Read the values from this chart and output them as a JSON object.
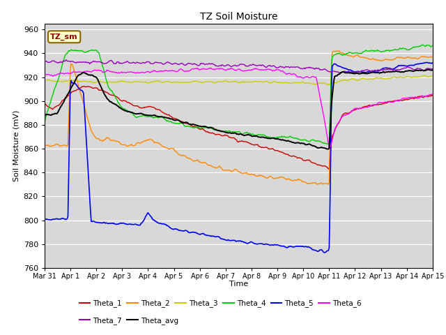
{
  "title": "TZ Soil Moisture",
  "xlabel": "Time",
  "ylabel": "Soil Moisture (mV)",
  "ylim": [
    760,
    965
  ],
  "yticks": [
    760,
    780,
    800,
    820,
    840,
    860,
    880,
    900,
    920,
    940,
    960
  ],
  "bg_color": "#d8d8d8",
  "label_box": "TZ_sm",
  "series_colors": {
    "Theta_1": "#cc0000",
    "Theta_2": "#ff8800",
    "Theta_3": "#cccc00",
    "Theta_4": "#00cc00",
    "Theta_5": "#0000ee",
    "Theta_6": "#ff00ff",
    "Theta_7": "#9900bb",
    "Theta_avg": "#000000"
  },
  "x_tick_labels": [
    "Mar 31",
    "Apr 1",
    "Apr 2",
    "Apr 3",
    "Apr 4",
    "Apr 5",
    "Apr 6",
    "Apr 7",
    "Apr 8",
    "Apr 9",
    "Apr 10",
    "Apr 11",
    "Apr 12",
    "Apr 13",
    "Apr 14",
    "Apr 15"
  ],
  "legend_row1": [
    "Theta_1",
    "Theta_2",
    "Theta_3",
    "Theta_4",
    "Theta_5",
    "Theta_6"
  ],
  "legend_row2": [
    "Theta_7",
    "Theta_avg"
  ]
}
